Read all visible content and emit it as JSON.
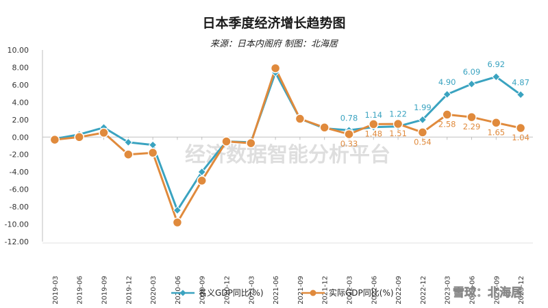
{
  "chart_data": {
    "type": "line",
    "title": "日本季度经济增长趋势图",
    "subtitle": "来源：日本内阁府 制图：北海居",
    "categories": [
      "2019-03",
      "2019-06",
      "2019-09",
      "2019-12",
      "2020-03",
      "2020-06",
      "2020-09",
      "2020-12",
      "2021-03",
      "2021-06",
      "2021-09",
      "2021-12",
      "2022-03",
      "2022-06",
      "2022-09",
      "2022-12",
      "2023-03",
      "2023-06",
      "2023-09",
      "2023-12"
    ],
    "series": [
      {
        "name": "名义GDP同比(%)",
        "color": "#3aa3c0",
        "marker": "diamond",
        "values": [
          -0.2,
          0.3,
          1.1,
          -0.6,
          -0.9,
          -8.4,
          -4.0,
          -0.5,
          -0.6,
          7.4,
          2.1,
          1.0,
          0.78,
          1.14,
          1.22,
          1.99,
          4.9,
          6.09,
          6.92,
          4.87
        ],
        "data_labels": [
          null,
          null,
          null,
          null,
          null,
          null,
          null,
          null,
          null,
          null,
          null,
          null,
          "0.78",
          "1.14",
          "1.22",
          "1.99",
          "4.90",
          "6.09",
          "6.92",
          "4.87"
        ]
      },
      {
        "name": "实际GDP同比(%)",
        "color": "#e08a3c",
        "marker": "circle",
        "values": [
          -0.3,
          0.0,
          0.5,
          -2.0,
          -1.8,
          -9.8,
          -5.0,
          -0.5,
          -0.7,
          7.9,
          2.1,
          1.1,
          0.33,
          1.48,
          1.51,
          0.54,
          2.58,
          2.29,
          1.65,
          1.04
        ],
        "data_labels": [
          null,
          null,
          null,
          null,
          null,
          null,
          null,
          null,
          null,
          null,
          null,
          null,
          "0.33",
          "1.48",
          "1.51",
          "0.54",
          "2.58",
          "2.29",
          "1.65",
          "1.04"
        ]
      }
    ],
    "y_ticks": [
      "10.00",
      "8.00",
      "6.00",
      "4.00",
      "2.00",
      "0.00",
      "-2.00",
      "-4.00",
      "-6.00",
      "-8.00",
      "-10.00",
      "-12.00"
    ],
    "ylim": [
      -12,
      10
    ],
    "grid": false,
    "legend": "bottom-center"
  },
  "watermark": "经济数据智能分析平台",
  "credit": "雪球：北海居"
}
